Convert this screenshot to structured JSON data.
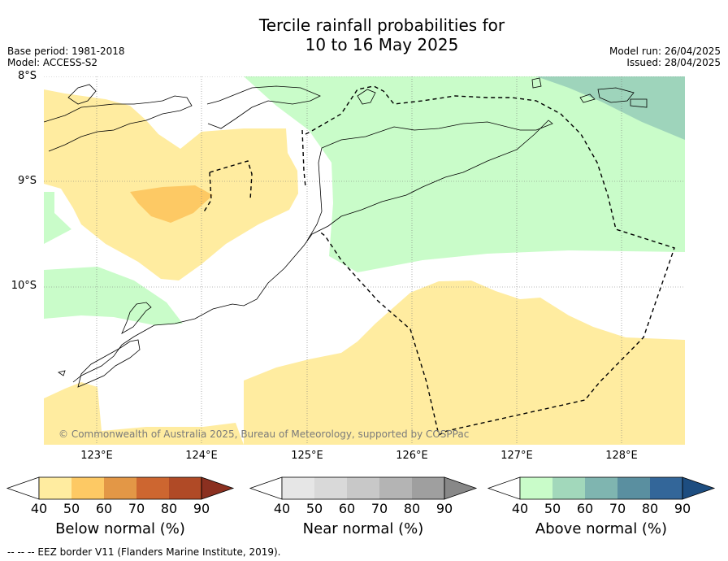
{
  "header": {
    "title_line1": "Tercile rainfall probabilities for",
    "title_line2": "10 to 16 May 2025",
    "base_period": "Base period: 1981-2018",
    "model": "Model: ACCESS-S2",
    "model_run": "Model run: 26/04/2025",
    "issued": "Issued: 28/04/2025"
  },
  "map": {
    "lat_labels": [
      "8°S",
      "9°S",
      "10°S"
    ],
    "lon_labels": [
      "123°E",
      "124°E",
      "125°E",
      "126°E",
      "127°E",
      "128°E"
    ],
    "credit": "© Commonwealth of Australia 2025, Bureau of Meteorology, supported by COSPPac",
    "colors": {
      "below_50": "#ffeca0",
      "below_60": "#fdc964",
      "above_50": "#c9fcc9",
      "above_60": "#9ed4bb",
      "land_line": "#000000",
      "eez_line": "#000000"
    }
  },
  "colorbars": {
    "below": {
      "title": "Below normal (%)",
      "ticks": [
        "40",
        "50",
        "60",
        "70",
        "80",
        "90"
      ],
      "colors": [
        "#ffffff",
        "#ffeca0",
        "#fdc964",
        "#e39746",
        "#cd6630",
        "#b04a26",
        "#8b3020"
      ]
    },
    "near": {
      "title": "Near normal (%)",
      "ticks": [
        "40",
        "50",
        "60",
        "70",
        "80",
        "90"
      ],
      "colors": [
        "#ffffff",
        "#e6e6e6",
        "#d9d9d9",
        "#c8c8c8",
        "#b4b4b4",
        "#9f9f9f",
        "#888888"
      ]
    },
    "above": {
      "title": "Above normal (%)",
      "ticks": [
        "40",
        "50",
        "60",
        "70",
        "80",
        "90"
      ],
      "colors": [
        "#ffffff",
        "#c9fcc9",
        "#a2d8bb",
        "#7fb5b0",
        "#5a8fa0",
        "#336699",
        "#1d4d80"
      ]
    }
  },
  "footer": {
    "legend_text": "--  --  -- EEZ border V11 (Flanders Marine Institute, 2019)."
  }
}
